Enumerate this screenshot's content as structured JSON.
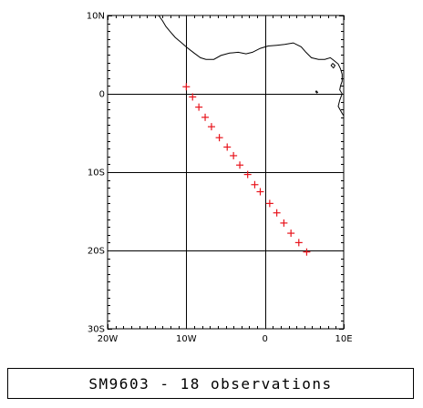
{
  "caption": "SM9603 - 18 observations",
  "colors": {
    "marker": "#e8141c",
    "grid": "#000000",
    "coast": "#000000"
  },
  "axes": {
    "lon_range": [
      -20,
      10
    ],
    "lat_range": [
      -30,
      10
    ],
    "lon_ticks": [
      {
        "value": -20,
        "label": "20W"
      },
      {
        "value": -10,
        "label": "10W"
      },
      {
        "value": 0,
        "label": "0"
      },
      {
        "value": 10,
        "label": "10E"
      }
    ],
    "lat_ticks": [
      {
        "value": 10,
        "label": "10N"
      },
      {
        "value": 0,
        "label": "0"
      },
      {
        "value": -10,
        "label": "10S"
      },
      {
        "value": -20,
        "label": "20S"
      },
      {
        "value": -30,
        "label": "30S"
      }
    ]
  },
  "observations": [
    {
      "lon": -10.0,
      "lat": 0.9
    },
    {
      "lon": -9.2,
      "lat": -0.4
    },
    {
      "lon": -8.4,
      "lat": -1.7
    },
    {
      "lon": -7.6,
      "lat": -3.0
    },
    {
      "lon": -6.8,
      "lat": -4.2
    },
    {
      "lon": -5.8,
      "lat": -5.6
    },
    {
      "lon": -4.8,
      "lat": -6.8
    },
    {
      "lon": -4.0,
      "lat": -7.9
    },
    {
      "lon": -3.2,
      "lat": -9.1
    },
    {
      "lon": -2.2,
      "lat": -10.3
    },
    {
      "lon": -1.3,
      "lat": -11.6
    },
    {
      "lon": -0.6,
      "lat": -12.5
    },
    {
      "lon": 0.6,
      "lat": -14.0
    },
    {
      "lon": 1.5,
      "lat": -15.2
    },
    {
      "lon": 2.4,
      "lat": -16.5
    },
    {
      "lon": 3.3,
      "lat": -17.8
    },
    {
      "lon": 4.3,
      "lat": -19.0
    },
    {
      "lon": 5.3,
      "lat": -20.2
    }
  ],
  "coastline": [
    [
      [
        -13.5,
        10.0
      ],
      [
        -13.0,
        9.3
      ],
      [
        -12.6,
        8.6
      ],
      [
        -12.1,
        8.0
      ],
      [
        -11.4,
        7.2
      ],
      [
        -10.7,
        6.6
      ],
      [
        -9.9,
        5.9
      ],
      [
        -9.0,
        5.2
      ],
      [
        -8.2,
        4.6
      ],
      [
        -7.5,
        4.4
      ],
      [
        -6.5,
        4.4
      ],
      [
        -5.6,
        4.9
      ],
      [
        -4.5,
        5.2
      ],
      [
        -3.4,
        5.3
      ],
      [
        -2.4,
        5.1
      ],
      [
        -1.6,
        5.3
      ],
      [
        -0.6,
        5.8
      ],
      [
        0.4,
        6.1
      ],
      [
        1.5,
        6.2
      ],
      [
        2.5,
        6.3
      ],
      [
        3.6,
        6.5
      ],
      [
        4.6,
        6.0
      ],
      [
        5.2,
        5.3
      ],
      [
        5.9,
        4.6
      ],
      [
        6.8,
        4.4
      ],
      [
        7.6,
        4.4
      ],
      [
        8.3,
        4.6
      ],
      [
        8.7,
        4.3
      ],
      [
        9.3,
        3.8
      ],
      [
        9.6,
        3.2
      ],
      [
        9.8,
        2.5
      ],
      [
        9.8,
        1.6
      ],
      [
        9.6,
        1.0
      ],
      [
        9.5,
        0.5
      ],
      [
        9.8,
        0.0
      ],
      [
        9.5,
        -0.8
      ],
      [
        9.3,
        -1.6
      ],
      [
        9.8,
        -2.5
      ],
      [
        10.0,
        -2.8
      ]
    ],
    [
      [
        8.6,
        3.9
      ],
      [
        8.9,
        3.6
      ],
      [
        8.7,
        3.3
      ],
      [
        8.4,
        3.6
      ],
      [
        8.6,
        3.9
      ]
    ],
    [
      [
        6.5,
        0.4
      ],
      [
        6.7,
        0.2
      ],
      [
        6.6,
        0.1
      ],
      [
        6.45,
        0.25
      ],
      [
        6.5,
        0.4
      ]
    ]
  ]
}
